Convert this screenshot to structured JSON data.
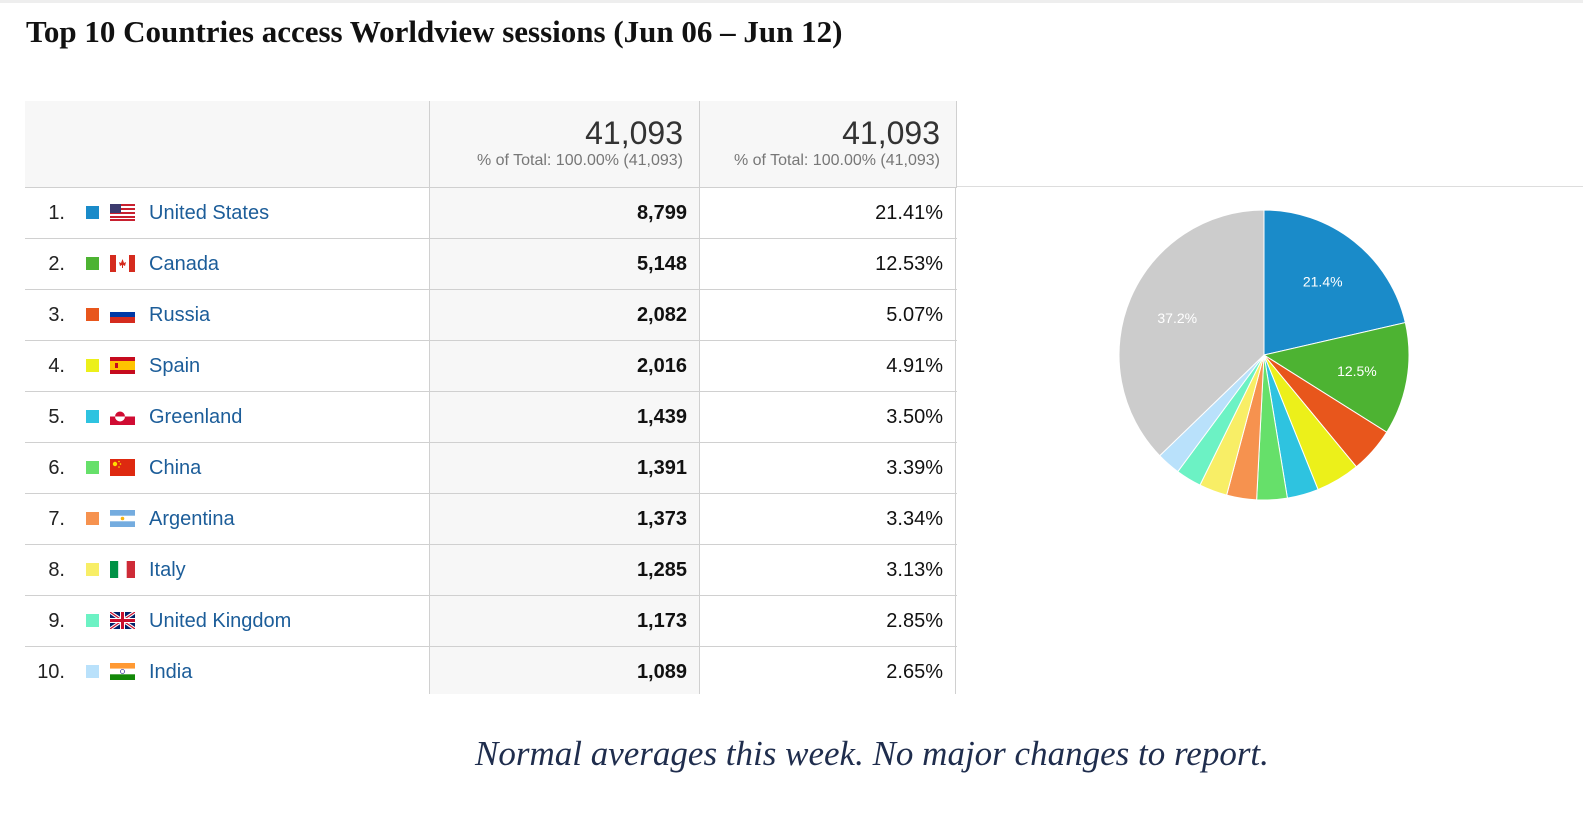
{
  "title": "Top 10 Countries access Worldview sessions (Jun 06 – Jun 12)",
  "header": {
    "sessions_total": "41,093",
    "sessions_sub": "% of Total: 100.00% (41,093)",
    "percent_total": "41,093",
    "percent_sub": "% of Total: 100.00% (41,093)"
  },
  "rows": [
    {
      "rank": "1.",
      "country": "United States",
      "sessions": "8,799",
      "percent": "21.41%",
      "color": "#1a8bc9",
      "flag": "us-flag-icon"
    },
    {
      "rank": "2.",
      "country": "Canada",
      "sessions": "5,148",
      "percent": "12.53%",
      "color": "#4db332",
      "flag": "ca-flag-icon"
    },
    {
      "rank": "3.",
      "country": "Russia",
      "sessions": "2,082",
      "percent": "5.07%",
      "color": "#e8561c",
      "flag": "ru-flag-icon"
    },
    {
      "rank": "4.",
      "country": "Spain",
      "sessions": "2,016",
      "percent": "4.91%",
      "color": "#ecf01a",
      "flag": "es-flag-icon"
    },
    {
      "rank": "5.",
      "country": "Greenland",
      "sessions": "1,439",
      "percent": "3.50%",
      "color": "#2ec3e0",
      "flag": "gl-flag-icon"
    },
    {
      "rank": "6.",
      "country": "China",
      "sessions": "1,391",
      "percent": "3.39%",
      "color": "#66e06a",
      "flag": "cn-flag-icon"
    },
    {
      "rank": "7.",
      "country": "Argentina",
      "sessions": "1,373",
      "percent": "3.34%",
      "color": "#f6924f",
      "flag": "ar-flag-icon"
    },
    {
      "rank": "8.",
      "country": "Italy",
      "sessions": "1,285",
      "percent": "3.13%",
      "color": "#f8ee66",
      "flag": "it-flag-icon"
    },
    {
      "rank": "9.",
      "country": "United Kingdom",
      "sessions": "1,173",
      "percent": "2.85%",
      "color": "#6cf2c4",
      "flag": "gb-flag-icon"
    },
    {
      "rank": "10.",
      "country": "India",
      "sessions": "1,089",
      "percent": "2.65%",
      "color": "#b9e1fb",
      "flag": "in-flag-icon"
    }
  ],
  "chart_data": {
    "type": "pie",
    "categories": [
      "United States",
      "Canada",
      "Russia",
      "Spain",
      "Greenland",
      "China",
      "Argentina",
      "Italy",
      "United Kingdom",
      "India",
      ""
    ],
    "values": [
      21.41,
      12.53,
      5.07,
      4.91,
      3.5,
      3.39,
      3.34,
      3.13,
      2.85,
      2.65,
      37.22
    ],
    "colors": [
      "#1a8bc9",
      "#4db332",
      "#e8561c",
      "#ecf01a",
      "#2ec3e0",
      "#66e06a",
      "#f6924f",
      "#f8ee66",
      "#6cf2c4",
      "#b9e1fb",
      "#cccccc"
    ],
    "labels": [
      "21.4%",
      "12.5%",
      "",
      "",
      "",
      "",
      "",
      "",
      "",
      "",
      "37.2%"
    ]
  },
  "note": "Normal averages this week.  No major changes to report."
}
